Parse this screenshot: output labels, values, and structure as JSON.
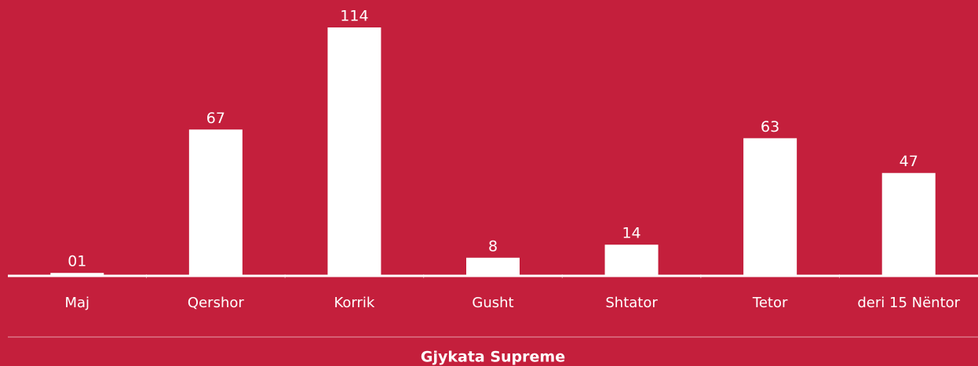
{
  "chart_data": {
    "type": "bar",
    "title": "Gjykata Supreme",
    "categories": [
      "Maj",
      "Qershor",
      "Korrik",
      "Gusht",
      "Shtator",
      "Tetor",
      "deri 15 Nëntor"
    ],
    "values": [
      1,
      67,
      114,
      8,
      14,
      63,
      47
    ],
    "value_labels": [
      "01",
      "67",
      "114",
      "8",
      "14",
      "63",
      "47"
    ],
    "color": "#ffffff"
  }
}
